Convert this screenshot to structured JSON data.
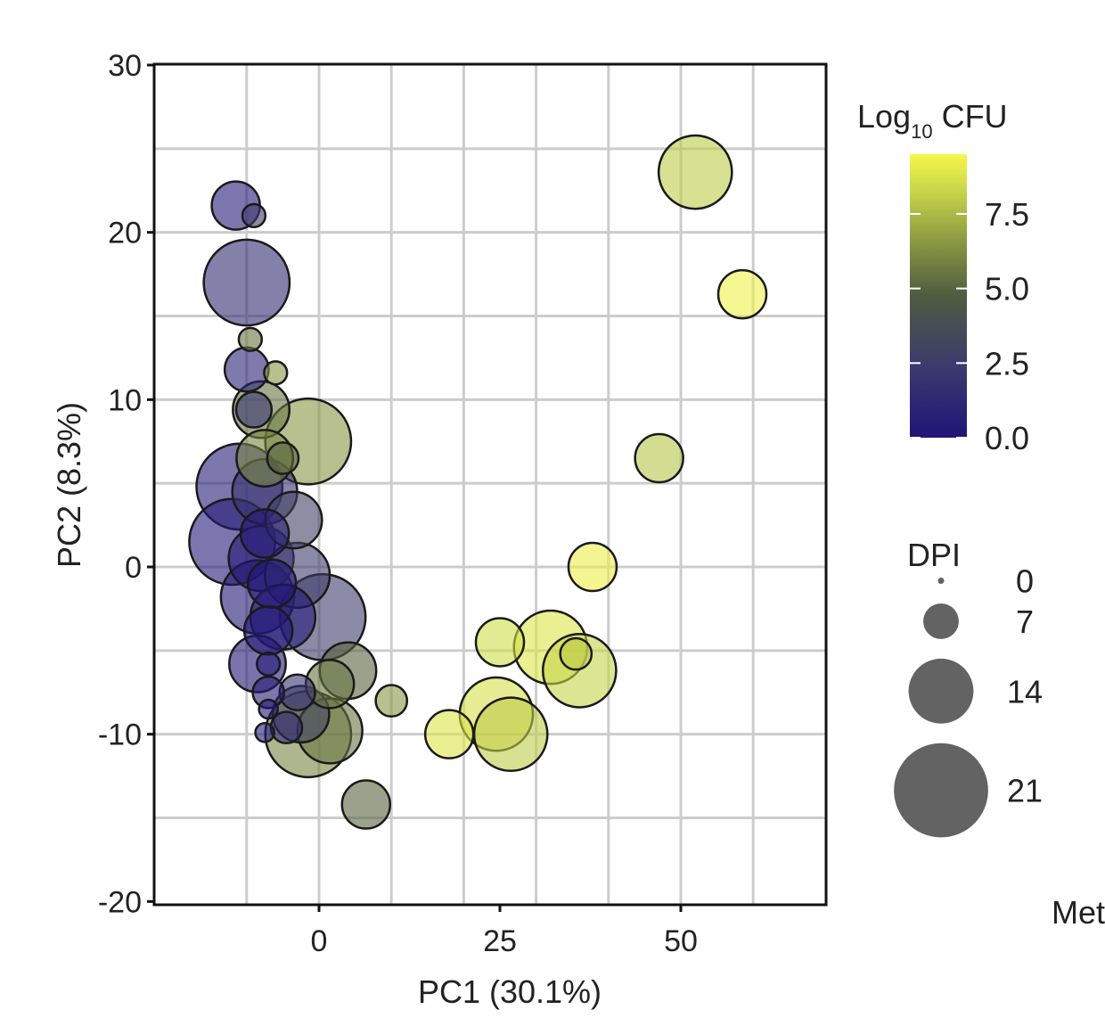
{
  "chart_data": {
    "type": "scatter",
    "xlabel": "PC1 (30.1%)",
    "ylabel": "PC2 (8.3%)",
    "xlim": [
      -20,
      70
    ],
    "ylim": [
      -20,
      30
    ],
    "x_ticks": [
      0,
      25,
      50
    ],
    "y_ticks": [
      30,
      20,
      10,
      0,
      -10,
      -20
    ],
    "grid": true,
    "color_legend": {
      "title_main": "Log",
      "title_sub": "10",
      "title_suffix": " CFU",
      "range": [
        0,
        9.5
      ],
      "ticks": [
        0.0,
        2.5,
        5.0,
        7.5
      ],
      "tick_labels": [
        "0.0",
        "2.5",
        "5.0",
        "7.5"
      ],
      "colors": [
        "#1f1577",
        "#3a3a6a",
        "#4e5a3e",
        "#8a9a40",
        "#c7d84a",
        "#f5f64a"
      ]
    },
    "size_legend": {
      "title": "DPI",
      "values": [
        0,
        7,
        14,
        21
      ],
      "labels": [
        "0",
        "7",
        "14",
        "21"
      ]
    },
    "cut_label": "Met",
    "points": [
      {
        "x": -11.5,
        "y": 21.6,
        "dpi": 10,
        "cfu": 0.3
      },
      {
        "x": -9.0,
        "y": 21.0,
        "dpi": 4,
        "cfu": 2.5
      },
      {
        "x": -10.0,
        "y": 17.0,
        "dpi": 19,
        "cfu": 1.5
      },
      {
        "x": -9.5,
        "y": 13.6,
        "dpi": 4,
        "cfu": 5.5
      },
      {
        "x": -10.0,
        "y": 11.8,
        "dpi": 9,
        "cfu": 0.8
      },
      {
        "x": -6.0,
        "y": 11.6,
        "dpi": 4,
        "cfu": 6.5
      },
      {
        "x": -9.0,
        "y": 9.4,
        "dpi": 7,
        "cfu": 2.0
      },
      {
        "x": -8.0,
        "y": 9.4,
        "dpi": 12,
        "cfu": 5.5
      },
      {
        "x": -1.5,
        "y": 7.5,
        "dpi": 19,
        "cfu": 6.5
      },
      {
        "x": -7.5,
        "y": 6.5,
        "dpi": 12,
        "cfu": 6.0
      },
      {
        "x": -5.0,
        "y": 6.5,
        "dpi": 6,
        "cfu": 5.0
      },
      {
        "x": -11.0,
        "y": 4.8,
        "dpi": 19,
        "cfu": 0.5
      },
      {
        "x": -7.5,
        "y": 4.5,
        "dpi": 14,
        "cfu": 2.0
      },
      {
        "x": -3.5,
        "y": 2.8,
        "dpi": 12,
        "cfu": 3.0
      },
      {
        "x": -7.5,
        "y": 2.0,
        "dpi": 10,
        "cfu": 0.5
      },
      {
        "x": -12.0,
        "y": 1.5,
        "dpi": 19,
        "cfu": 0.3
      },
      {
        "x": -8.0,
        "y": 0.5,
        "dpi": 14,
        "cfu": 0.2
      },
      {
        "x": -3.0,
        "y": -0.5,
        "dpi": 14,
        "cfu": 2.5
      },
      {
        "x": -6.5,
        "y": -1.0,
        "dpi": 10,
        "cfu": 0.1
      },
      {
        "x": -8.5,
        "y": -1.8,
        "dpi": 16,
        "cfu": 0.2
      },
      {
        "x": 0.5,
        "y": -3.0,
        "dpi": 19,
        "cfu": 2.5
      },
      {
        "x": -5.0,
        "y": -3.0,
        "dpi": 14,
        "cfu": 0.3
      },
      {
        "x": -7.0,
        "y": -3.8,
        "dpi": 10,
        "cfu": 0.1
      },
      {
        "x": -8.5,
        "y": -5.8,
        "dpi": 12,
        "cfu": 0.2
      },
      {
        "x": -7.0,
        "y": -5.8,
        "dpi": 4,
        "cfu": 0.1
      },
      {
        "x": 4.0,
        "y": -6.2,
        "dpi": 12,
        "cfu": 5.0
      },
      {
        "x": 1.5,
        "y": -7.0,
        "dpi": 10,
        "cfu": 5.5
      },
      {
        "x": -7.0,
        "y": -7.5,
        "dpi": 6,
        "cfu": 0.5
      },
      {
        "x": -3.0,
        "y": -7.5,
        "dpi": 7,
        "cfu": 2.0
      },
      {
        "x": -2.5,
        "y": -8.8,
        "dpi": 12,
        "cfu": 3.0
      },
      {
        "x": -7.0,
        "y": -8.5,
        "dpi": 3,
        "cfu": 0.3
      },
      {
        "x": -4.5,
        "y": -9.6,
        "dpi": 6,
        "cfu": 1.5
      },
      {
        "x": -7.5,
        "y": -9.9,
        "dpi": 3,
        "cfu": 0.5
      },
      {
        "x": 1.5,
        "y": -9.8,
        "dpi": 14,
        "cfu": 5.5
      },
      {
        "x": -1.5,
        "y": -10.0,
        "dpi": 19,
        "cfu": 6.0
      },
      {
        "x": 10.0,
        "y": -8.0,
        "dpi": 6,
        "cfu": 6.5
      },
      {
        "x": 6.5,
        "y": -14.2,
        "dpi": 10,
        "cfu": 5.0
      },
      {
        "x": 18.0,
        "y": -10.0,
        "dpi": 10,
        "cfu": 8.8
      },
      {
        "x": 24.5,
        "y": -8.8,
        "dpi": 16,
        "cfu": 8.6
      },
      {
        "x": 26.5,
        "y": -10.0,
        "dpi": 16,
        "cfu": 8.0
      },
      {
        "x": 25.0,
        "y": -4.5,
        "dpi": 10,
        "cfu": 8.5
      },
      {
        "x": 32.0,
        "y": -4.8,
        "dpi": 16,
        "cfu": 8.8
      },
      {
        "x": 36.0,
        "y": -6.2,
        "dpi": 16,
        "cfu": 8.2
      },
      {
        "x": 35.5,
        "y": -5.2,
        "dpi": 6,
        "cfu": 8.0
      },
      {
        "x": 37.8,
        "y": 0.0,
        "dpi": 10,
        "cfu": 9.2
      },
      {
        "x": 47.0,
        "y": 6.5,
        "dpi": 10,
        "cfu": 7.8
      },
      {
        "x": 52.0,
        "y": 23.6,
        "dpi": 16,
        "cfu": 8.0
      },
      {
        "x": 58.5,
        "y": 16.3,
        "dpi": 10,
        "cfu": 9.3
      }
    ]
  }
}
